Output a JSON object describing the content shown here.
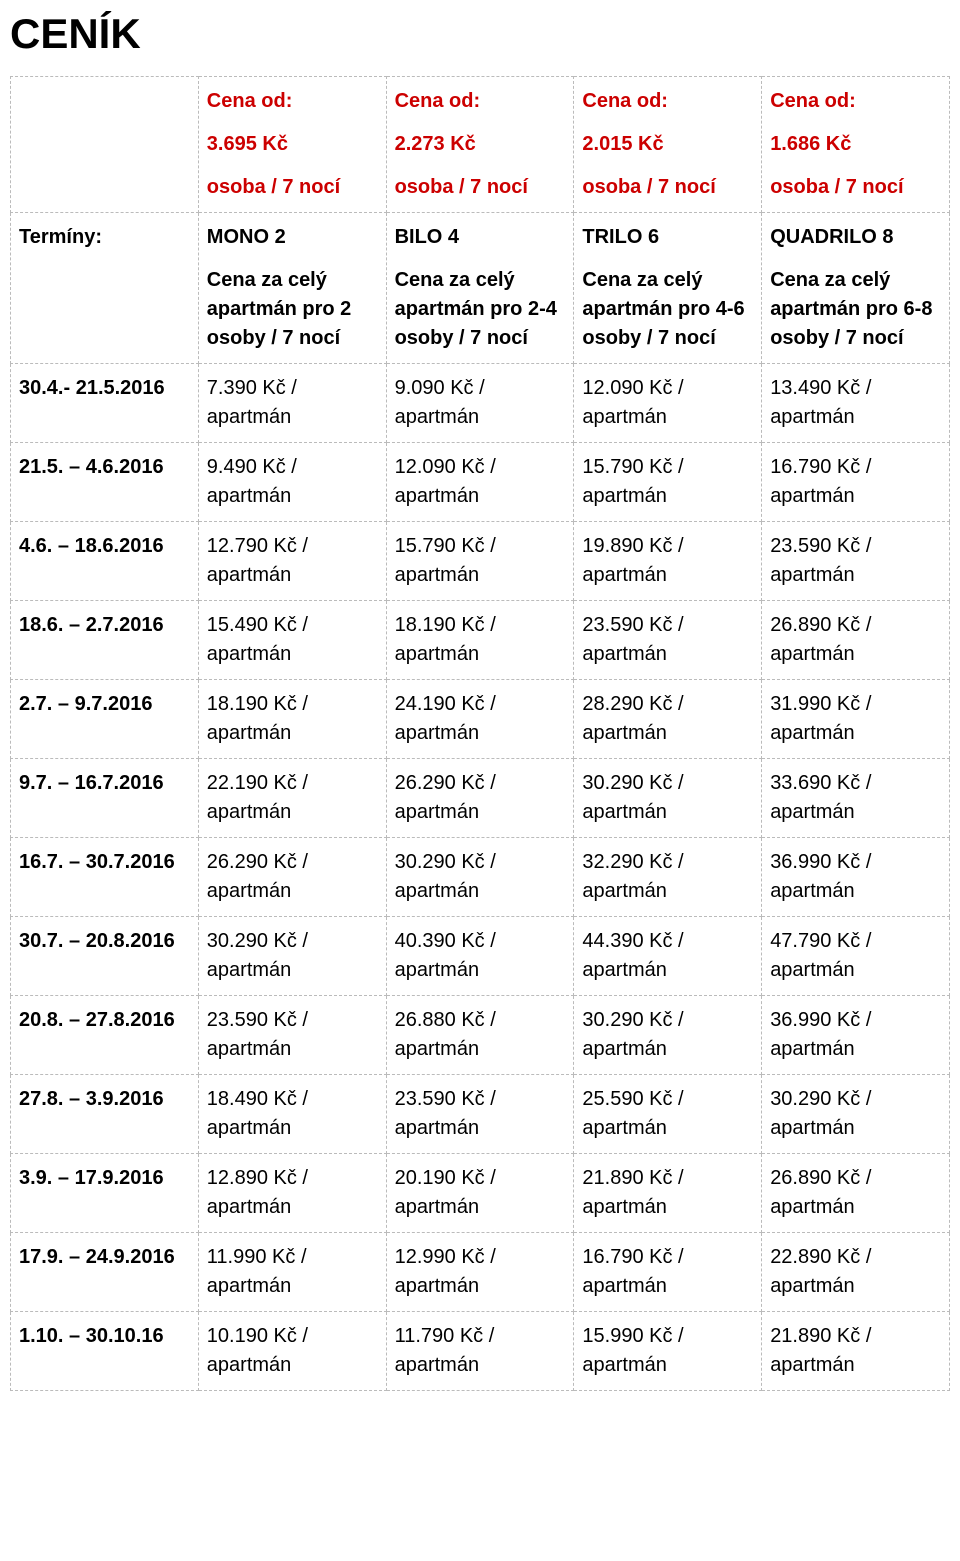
{
  "title": "CENÍK",
  "header_top": {
    "cena_od_label": "Cena od:",
    "unit": "osoba / 7 nocí",
    "prices": [
      "3.695 Kč",
      "2.273 Kč",
      "2.015 Kč",
      "1.686 Kč"
    ]
  },
  "terms_label": "Termíny:",
  "types": [
    {
      "name": "MONO 2",
      "desc": "Cena za celý apartmán pro 2 osoby / 7 nocí"
    },
    {
      "name": "BILO 4",
      "desc": "Cena za celý apartmán pro 2-4 osoby / 7 nocí"
    },
    {
      "name": "TRILO 6",
      "desc": "Cena za celý apartmán pro 4-6 osoby / 7 nocí"
    },
    {
      "name": "QUADRILO 8",
      "desc": "Cena za celý apartmán pro 6-8 osoby / 7 nocí"
    }
  ],
  "rows": [
    {
      "date": "30.4.- 21.5.2016",
      "p": [
        "7.390 Kč / apartmán",
        "9.090 Kč / apartmán",
        "12.090 Kč / apartmán",
        "13.490 Kč / apartmán"
      ]
    },
    {
      "date": "21.5. – 4.6.2016",
      "p": [
        "9.490 Kč / apartmán",
        "12.090 Kč / apartmán",
        "15.790 Kč / apartmán",
        "16.790 Kč / apartmán"
      ]
    },
    {
      "date": "4.6. – 18.6.2016",
      "p": [
        "12.790 Kč / apartmán",
        "15.790  Kč / apartmán",
        "19.890 Kč / apartmán",
        "23.590 Kč / apartmán"
      ]
    },
    {
      "date": "18.6. – 2.7.2016",
      "p": [
        "15.490 Kč / apartmán",
        "18.190 Kč / apartmán",
        "23.590 Kč / apartmán",
        "26.890 Kč / apartmán"
      ]
    },
    {
      "date": "2.7. – 9.7.2016",
      "p": [
        "18.190 Kč / apartmán",
        "24.190 Kč / apartmán",
        "28.290 Kč / apartmán",
        "31.990 Kč / apartmán"
      ]
    },
    {
      "date": "9.7. – 16.7.2016",
      "p": [
        "22.190 Kč / apartmán",
        "26.290 Kč / apartmán",
        "30.290 Kč / apartmán",
        "33.690 Kč / apartmán"
      ]
    },
    {
      "date": "16.7. – 30.7.2016",
      "p": [
        "26.290 Kč / apartmán",
        "30.290 Kč / apartmán",
        "32.290 Kč / apartmán",
        "36.990 Kč / apartmán"
      ]
    },
    {
      "date": "30.7. – 20.8.2016",
      "p": [
        "30.290 Kč / apartmán",
        "40.390 Kč / apartmán",
        "44.390 Kč / apartmán",
        "47.790 Kč / apartmán"
      ]
    },
    {
      "date": "20.8. – 27.8.2016",
      "p": [
        "23.590 Kč / apartmán",
        "26.880 Kč / apartmán",
        "30.290 Kč / apartmán",
        "36.990 Kč / apartmán"
      ]
    },
    {
      "date": "27.8. – 3.9.2016",
      "p": [
        "18.490 Kč / apartmán",
        "23.590 Kč / apartmán",
        "25.590 Kč / apartmán",
        "30.290 Kč / apartmán"
      ]
    },
    {
      "date": "3.9. – 17.9.2016",
      "p": [
        "12.890 Kč / apartmán",
        "20.190 Kč / apartmán",
        "21.890 Kč / apartmán",
        "26.890 Kč / apartmán"
      ]
    },
    {
      "date": "17.9. – 24.9.2016",
      "p": [
        "11.990 Kč / apartmán",
        "12.990 Kč / apartmán",
        "16.790 Kč / apartmán",
        "22.890 Kč / apartmán"
      ]
    },
    {
      "date": "1.10. – 30.10.16",
      "p": [
        "10.190 Kč / apartmán",
        "11.790 Kč / apartmán",
        "15.990 Kč / apartmán",
        "21.890 Kč / apartmán"
      ]
    }
  ],
  "colors": {
    "border": "#bbbbbb",
    "accent": "#cc0000",
    "text": "#000000",
    "background": "#ffffff"
  }
}
